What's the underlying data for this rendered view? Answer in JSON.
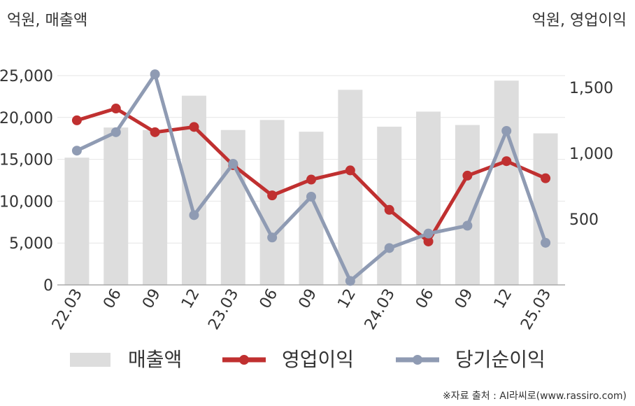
{
  "chart_data": {
    "type": "bar",
    "categories": [
      "22.03",
      "06",
      "09",
      "12",
      "23.03",
      "06",
      "09",
      "12",
      "24.03",
      "06",
      "09",
      "12",
      "25.03"
    ],
    "left_axis_label": "억원, 매출액",
    "right_axis_label": "억원, 영업이익",
    "left_ylim": [
      0,
      25000
    ],
    "left_ticks": [
      "0",
      "5,000",
      "10,000",
      "15,000",
      "20,000",
      "25,000"
    ],
    "left_tick_values": [
      0,
      5000,
      10000,
      15000,
      20000,
      25000
    ],
    "right_ticks": [
      "500",
      "1,000",
      "1,500"
    ],
    "right_tick_values": [
      500,
      1000,
      1500
    ],
    "right_ylim": [
      0,
      1590
    ],
    "grid": true,
    "series": [
      {
        "name": "매출액",
        "type": "bar",
        "axis": "left",
        "color": "#dddddd",
        "values": [
          15200,
          18800,
          18500,
          22600,
          18500,
          19700,
          18300,
          23300,
          18900,
          20700,
          19100,
          24400,
          18100
        ]
      },
      {
        "name": "영업이익",
        "type": "line",
        "axis": "right",
        "color": "#c03030",
        "values": [
          1250,
          1340,
          1160,
          1200,
          910,
          680,
          800,
          870,
          570,
          330,
          830,
          940,
          810
        ]
      },
      {
        "name": "당기순이익",
        "type": "line",
        "axis": "right",
        "color": "#8f9bb3",
        "values": [
          1020,
          1160,
          1600,
          530,
          920,
          360,
          670,
          30,
          280,
          390,
          450,
          1170,
          320
        ]
      }
    ],
    "legend": {
      "position": "bottom"
    },
    "source": "※자료 출처 : AI라씨로(www.rassiro.com)"
  }
}
